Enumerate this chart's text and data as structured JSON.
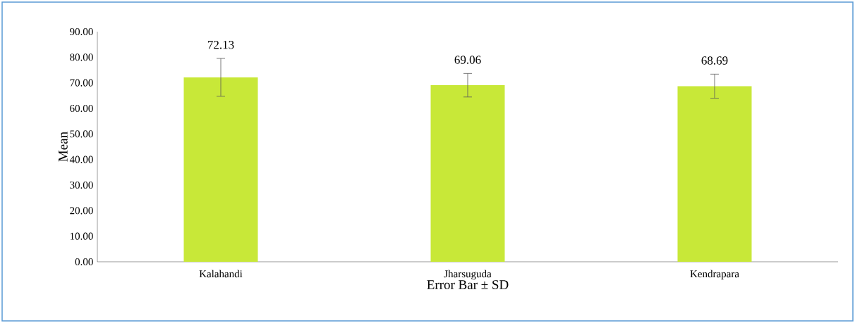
{
  "chart_data": {
    "type": "bar",
    "xlabel": "Error Bar ± SD",
    "ylabel": "Mean",
    "categories": [
      "Kalahandi",
      "Jharsuguda",
      "Kendrapara"
    ],
    "values": [
      72.13,
      69.06,
      68.69
    ],
    "errors": [
      7.4,
      4.6,
      4.7
    ],
    "color": "#c8e838",
    "data_labels": true,
    "ylim": [
      0,
      90
    ],
    "yticks": [
      {
        "value": 0,
        "label": "0.00"
      },
      {
        "value": 10,
        "label": "10.00"
      },
      {
        "value": 20,
        "label": "20.00"
      },
      {
        "value": 30,
        "label": "30.00"
      },
      {
        "value": 40,
        "label": "40.00"
      },
      {
        "value": 50,
        "label": "50.00"
      },
      {
        "value": 60,
        "label": "60.00"
      },
      {
        "value": 70,
        "label": "70.00"
      },
      {
        "value": 80,
        "label": "80.00"
      },
      {
        "value": 90,
        "label": "90.00"
      }
    ],
    "grid": false
  }
}
